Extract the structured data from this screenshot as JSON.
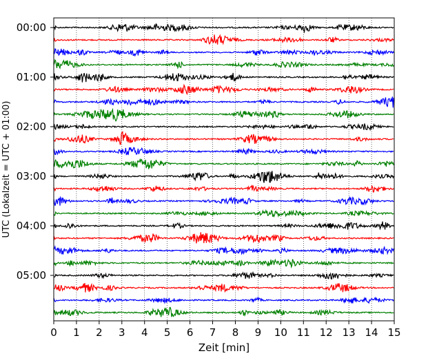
{
  "chart_data": {
    "type": "line",
    "title": "",
    "xlabel": "Zeit  [min]",
    "ylabel": "UTC (Lokalzeit = UTC + 01:00)",
    "xlim": [
      0,
      15
    ],
    "x_ticks": [
      "0",
      "1",
      "2",
      "3",
      "4",
      "5",
      "6",
      "7",
      "8",
      "9",
      "10",
      "11",
      "12",
      "13",
      "14",
      "15"
    ],
    "grid": "vertical dotted",
    "y_ticks": [
      {
        "label": "00:00",
        "trace_index": 0
      },
      {
        "label": "01:00",
        "trace_index": 4
      },
      {
        "label": "02:00",
        "trace_index": 8
      },
      {
        "label": "03:00",
        "trace_index": 12
      },
      {
        "label": "04:00",
        "trace_index": 16
      },
      {
        "label": "05:00",
        "trace_index": 20
      }
    ],
    "trace_minutes": 15,
    "trace_count": 24,
    "trace_colors": [
      "#000000",
      "#ff0000",
      "#0000ff",
      "#008000"
    ]
  }
}
